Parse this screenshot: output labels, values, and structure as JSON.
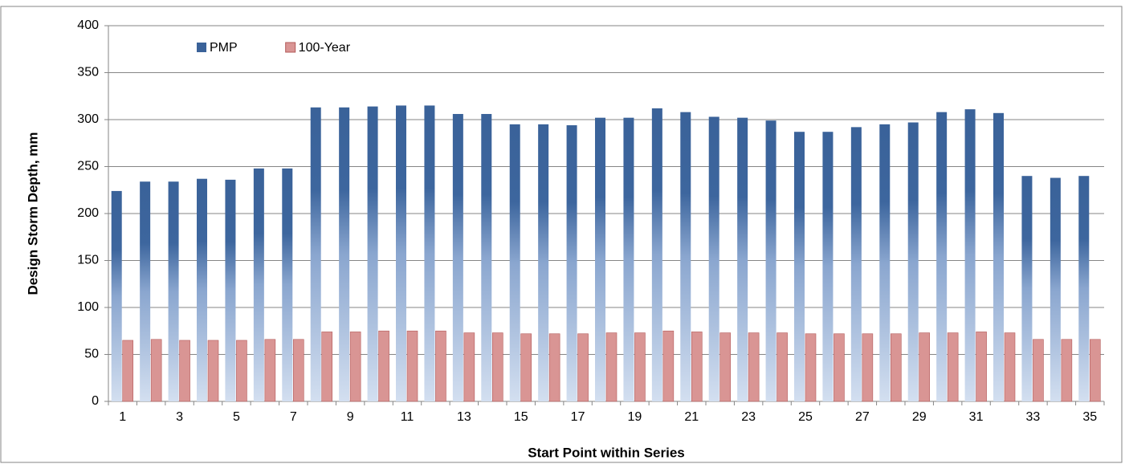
{
  "chart_data": {
    "type": "bar",
    "y_label": "Design Storm Depth, mm",
    "x_label": "Start Point within Series",
    "categories": [
      "1",
      null,
      "3",
      null,
      "5",
      null,
      "7",
      null,
      "9",
      null,
      "11",
      null,
      "13",
      null,
      "15",
      null,
      "17",
      null,
      "19",
      null,
      "21",
      null,
      "23",
      null,
      "25",
      null,
      "27",
      null,
      "29",
      null,
      "31",
      null,
      "33",
      null,
      "35"
    ],
    "series": [
      {
        "name": "PMP",
        "color": "#3a6299",
        "values": [
          224,
          234,
          234,
          237,
          236,
          248,
          248,
          313,
          313,
          314,
          315,
          315,
          306,
          306,
          295,
          295,
          294,
          302,
          302,
          312,
          308,
          303,
          302,
          299,
          287,
          287,
          292,
          295,
          297,
          308,
          311,
          307,
          240,
          238,
          240
        ]
      },
      {
        "name": "100-Year",
        "color": "#d99594",
        "values": [
          65,
          66,
          65,
          65,
          65,
          66,
          66,
          74,
          74,
          75,
          75,
          75,
          73,
          73,
          72,
          72,
          72,
          73,
          73,
          75,
          74,
          73,
          73,
          73,
          72,
          72,
          72,
          72,
          73,
          73,
          74,
          73,
          66,
          66,
          66
        ]
      }
    ],
    "ylim": [
      0,
      400
    ],
    "yticks": [
      0,
      50,
      100,
      150,
      200,
      250,
      300,
      350,
      400
    ],
    "grid": true,
    "legend": "top-left"
  }
}
